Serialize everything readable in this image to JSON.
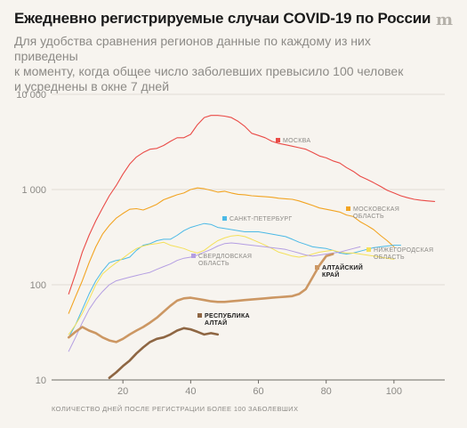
{
  "header": {
    "title": "Ежедневно регистрируемые случаи COVID-19 по России",
    "subtitle_lines": [
      "Для удобства сравнения регионов данные по каждому из них приведены",
      "к моменту, когда общее число заболевших превысило 100 человек",
      "и усреднены в окне 7 дней"
    ],
    "logo": "m"
  },
  "chart_data": {
    "type": "line",
    "title": "Ежедневно регистрируемые случаи COVID-19 по России",
    "xlabel": "КОЛИЧЕСТВО ДНЕЙ ПОСЛЕ РЕГИСТРАЦИИ БОЛЕЕ 100 ЗАБОЛЕВШИХ",
    "ylabel": "",
    "xlim": [
      0,
      115
    ],
    "ylim": [
      10,
      10000
    ],
    "yscale": "log",
    "grid": "horizontal",
    "x_ticks": [
      20,
      40,
      60,
      80,
      100
    ],
    "x_tick_labels": [
      "20",
      "40",
      "60",
      "80",
      "100"
    ],
    "y_ticks": [
      10,
      100,
      1000,
      10000
    ],
    "y_tick_labels": [
      "10",
      "100",
      "1 000",
      "10 000"
    ],
    "series": [
      {
        "name_lines": [
          "МОСКВА"
        ],
        "color": "#ea4b47",
        "x": [
          4,
          6,
          8,
          10,
          12,
          14,
          16,
          18,
          20,
          22,
          24,
          26,
          28,
          30,
          32,
          34,
          36,
          38,
          40,
          42,
          44,
          46,
          48,
          50,
          52,
          54,
          56,
          58,
          60,
          62,
          64,
          66,
          68,
          70,
          72,
          74,
          76,
          78,
          80,
          82,
          84,
          86,
          88,
          90,
          92,
          94,
          96,
          98,
          100,
          102,
          104,
          106,
          108,
          110,
          112
        ],
        "y": [
          80,
          130,
          220,
          330,
          470,
          640,
          860,
          1100,
          1450,
          1850,
          2200,
          2450,
          2650,
          2700,
          2900,
          3200,
          3500,
          3500,
          3800,
          4800,
          5700,
          6000,
          6000,
          5900,
          5700,
          5200,
          4600,
          3900,
          3700,
          3500,
          3200,
          3050,
          2950,
          2850,
          2750,
          2650,
          2450,
          2250,
          2150,
          2000,
          1900,
          1700,
          1550,
          1380,
          1280,
          1180,
          1080,
          980,
          920,
          860,
          820,
          790,
          770,
          760,
          750
        ],
        "stroke_width": 1.1
      },
      {
        "name_lines": [
          "МОСКОВСКАЯ",
          "ОБЛАСТЬ"
        ],
        "color": "#f2a422",
        "x": [
          4,
          6,
          8,
          10,
          12,
          14,
          16,
          18,
          20,
          22,
          24,
          26,
          28,
          30,
          32,
          34,
          36,
          38,
          40,
          42,
          44,
          46,
          48,
          50,
          52,
          54,
          56,
          58,
          60,
          62,
          64,
          66,
          68,
          70,
          72,
          74,
          76,
          78,
          80,
          82,
          84,
          86,
          88,
          90,
          92,
          94,
          96,
          98,
          100
        ],
        "y": [
          50,
          75,
          110,
          170,
          250,
          340,
          420,
          500,
          560,
          620,
          630,
          610,
          650,
          700,
          780,
          830,
          880,
          920,
          1000,
          1040,
          1020,
          980,
          940,
          960,
          920,
          890,
          880,
          860,
          850,
          840,
          830,
          810,
          800,
          790,
          760,
          720,
          680,
          640,
          620,
          600,
          580,
          540,
          520,
          460,
          420,
          380,
          330,
          290,
          250
        ],
        "stroke_width": 1.1
      },
      {
        "name_lines": [
          "САНКТ-ПЕТЕРБУРГ"
        ],
        "color": "#4bb9e6",
        "x": [
          4,
          6,
          8,
          10,
          12,
          14,
          16,
          18,
          20,
          22,
          24,
          26,
          28,
          30,
          32,
          34,
          36,
          38,
          40,
          42,
          44,
          46,
          48,
          50,
          52,
          54,
          56,
          58,
          60,
          62,
          64,
          66,
          68,
          70,
          72,
          74,
          76,
          78,
          80,
          82,
          84,
          86,
          88,
          90,
          92,
          94,
          96,
          98,
          100,
          102
        ],
        "y": [
          28,
          38,
          55,
          80,
          110,
          140,
          170,
          180,
          185,
          195,
          230,
          260,
          270,
          290,
          300,
          300,
          330,
          370,
          400,
          420,
          440,
          430,
          400,
          390,
          380,
          370,
          360,
          360,
          360,
          350,
          340,
          330,
          320,
          300,
          280,
          265,
          250,
          245,
          240,
          230,
          215,
          210,
          215,
          225,
          235,
          245,
          250,
          255,
          260,
          260
        ],
        "stroke_width": 1
      },
      {
        "name_lines": [
          "НИЖЕГОРОДСКАЯ",
          "ОБЛАСТЬ"
        ],
        "color": "#f4e05a",
        "x": [
          4,
          6,
          8,
          10,
          12,
          14,
          16,
          18,
          20,
          22,
          24,
          26,
          28,
          30,
          32,
          34,
          36,
          38,
          40,
          42,
          44,
          46,
          48,
          50,
          52,
          54,
          56,
          58,
          60,
          62,
          64,
          66,
          68,
          70,
          72,
          74,
          76,
          78,
          80,
          82,
          84,
          86,
          88,
          90,
          92,
          94,
          96,
          98,
          100
        ],
        "y": [
          30,
          38,
          50,
          70,
          100,
          130,
          150,
          170,
          190,
          215,
          240,
          255,
          265,
          270,
          280,
          260,
          250,
          240,
          225,
          215,
          230,
          260,
          290,
          310,
          325,
          330,
          320,
          300,
          280,
          260,
          240,
          220,
          210,
          200,
          195,
          200,
          210,
          220,
          225,
          230,
          220,
          215,
          215,
          210,
          205,
          200,
          195,
          190,
          185
        ],
        "stroke_width": 1
      },
      {
        "name_lines": [
          "СВЕРДЛОВСКАЯ",
          "ОБЛАСТЬ"
        ],
        "color": "#b49ee2",
        "x": [
          4,
          6,
          8,
          10,
          12,
          14,
          16,
          18,
          20,
          22,
          24,
          26,
          28,
          30,
          32,
          34,
          36,
          38,
          40,
          42,
          44,
          46,
          48,
          50,
          52,
          54,
          56,
          58,
          60,
          62,
          64,
          66,
          68,
          70,
          72,
          74,
          76,
          78,
          80,
          82,
          84,
          86,
          88,
          90
        ],
        "y": [
          20,
          28,
          40,
          55,
          70,
          85,
          100,
          110,
          115,
          120,
          125,
          130,
          135,
          145,
          155,
          165,
          180,
          190,
          195,
          205,
          220,
          235,
          255,
          270,
          275,
          270,
          265,
          260,
          255,
          250,
          245,
          240,
          235,
          225,
          215,
          205,
          200,
          205,
          210,
          215,
          220,
          230,
          240,
          250
        ],
        "stroke_width": 1
      },
      {
        "name_lines": [
          "АЛТАЙСКИЙ",
          "КРАЙ"
        ],
        "color": "#cc9763",
        "x": [
          4,
          6,
          8,
          10,
          12,
          14,
          16,
          18,
          20,
          22,
          24,
          26,
          28,
          30,
          32,
          34,
          36,
          38,
          40,
          42,
          44,
          46,
          48,
          50,
          52,
          54,
          56,
          58,
          60,
          62,
          64,
          66,
          68,
          70,
          72,
          74,
          76,
          78,
          80,
          82
        ],
        "y": [
          28,
          32,
          36,
          33,
          31,
          28,
          26,
          25,
          27,
          30,
          33,
          36,
          40,
          45,
          52,
          60,
          68,
          72,
          73,
          71,
          69,
          67,
          66,
          66,
          67,
          68,
          69,
          70,
          71,
          72,
          73,
          74,
          75,
          76,
          80,
          90,
          120,
          160,
          200,
          210
        ],
        "stroke_width": 2.6
      },
      {
        "name_lines": [
          "РЕСПУБЛИКА",
          "АЛТАЙ"
        ],
        "color": "#8e6643",
        "x": [
          16,
          18,
          20,
          22,
          24,
          26,
          28,
          30,
          32,
          34,
          36,
          38,
          40,
          42,
          44,
          46,
          48
        ],
        "y": [
          10.5,
          12,
          14,
          16,
          19,
          22,
          25,
          27,
          28,
          30,
          33,
          35,
          34,
          32,
          30,
          31,
          30
        ],
        "stroke_width": 2.6
      }
    ]
  }
}
